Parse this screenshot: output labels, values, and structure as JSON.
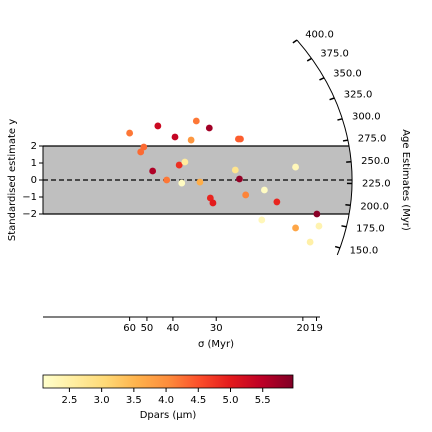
{
  "chart_data": {
    "type": "radial",
    "ylabel": "Standardised estimate y",
    "xlabel": "σ (Myr)",
    "zlabel": "Age Estimates (Myr)",
    "colorbar_label": "Dpars (μm)",
    "colormap": "YlOrRd",
    "clim": [
      2.09,
      5.97
    ],
    "band": [
      -2,
      2
    ],
    "xlim": [
      0,
      0.0533
    ],
    "xticks": [
      {
        "value": 0.016667,
        "label": "60"
      },
      {
        "value": 0.02,
        "label": "50"
      },
      {
        "value": 0.025,
        "label": "40"
      },
      {
        "value": 0.033333,
        "label": "30"
      },
      {
        "value": 0.05,
        "label": "20"
      },
      {
        "value": 0.052632,
        "label": "19"
      }
    ],
    "yticks": [
      {
        "value": -2,
        "label": "−2"
      },
      {
        "value": -1,
        "label": "−1"
      },
      0,
      1,
      2
    ],
    "zticks": [
      {
        "value": 150,
        "label": "150.0"
      },
      {
        "value": 175,
        "label": "175.0"
      },
      {
        "value": 200,
        "label": "200.0"
      },
      {
        "value": 225,
        "label": "225.0"
      },
      {
        "value": 250,
        "label": "250.0"
      },
      {
        "value": 275,
        "label": "275.0"
      },
      {
        "value": 300,
        "label": "300.0"
      },
      {
        "value": 325,
        "label": "325.0"
      },
      {
        "value": 350,
        "label": "350.0"
      },
      {
        "value": 375,
        "label": "375.0"
      },
      {
        "value": 400,
        "label": "400.0"
      }
    ],
    "cticks": [
      2.5,
      {
        "value": 3,
        "label": "3.0"
      },
      3.5,
      {
        "value": 4,
        "label": "4.0"
      },
      4.5,
      {
        "value": 5,
        "label": "5.0"
      },
      5.5
    ],
    "x": [
      0.01667,
      0.0188,
      0.0194,
      0.0211,
      0.0221,
      0.0238,
      0.0254,
      0.0262,
      0.0267,
      0.0273,
      0.0285,
      0.0295,
      0.0302,
      0.032,
      0.0322,
      0.0327,
      0.037,
      0.0376,
      0.038,
      0.0378,
      0.039,
      0.0421,
      0.0426,
      0.045,
      0.0486,
      0.0486,
      0.0514,
      0.0527,
      0.0531
    ],
    "values": [
      2.76,
      1.65,
      1.94,
      0.53,
      3.18,
      0.0,
      2.53,
      0.88,
      -0.18,
      1.06,
      2.35,
      3.47,
      -0.12,
      3.06,
      -1.06,
      -1.35,
      0.59,
      2.41,
      2.41,
      0.06,
      -0.88,
      -2.35,
      -0.59,
      -1.29,
      0.76,
      -2.82,
      -3.65,
      -2.0,
      -2.71
    ],
    "color_values": [
      4.2,
      4.3,
      4.3,
      5.6,
      5.3,
      4.2,
      5.4,
      4.8,
      2.2,
      2.6,
      3.9,
      4.2,
      3.6,
      5.7,
      4.9,
      5.0,
      2.8,
      4.4,
      4.4,
      5.8,
      4.1,
      2.3,
      2.2,
      4.9,
      2.3,
      3.7,
      2.5,
      5.9,
      2.4
    ]
  }
}
